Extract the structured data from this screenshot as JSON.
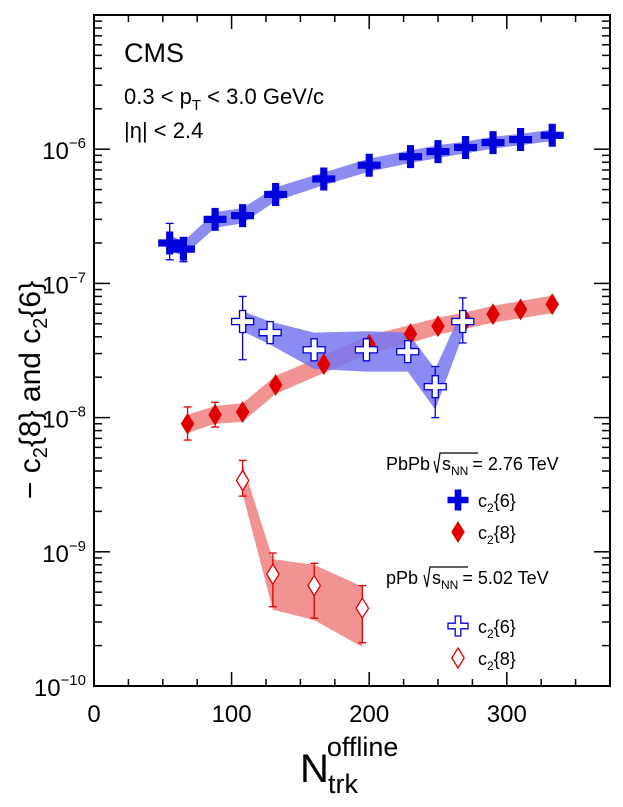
{
  "chart_data": {
    "type": "scatter",
    "title": "CMS",
    "annotations": {
      "pt_range": "0.3 < p",
      "pt_sub": "T",
      "pt_rest": " < 3.0 GeV/c",
      "eta": "|η| < 2.4"
    },
    "xlabel": {
      "main": "N",
      "sub": "trk",
      "sup": "offline"
    },
    "ylabel": "− c2{8} and c2{6}",
    "xlim": [
      0,
      375
    ],
    "ylim": [
      1e-10,
      1e-05
    ],
    "yscale": "log",
    "xticks": [
      "0",
      "100",
      "200",
      "300"
    ],
    "yticks": [
      {
        "base": "10",
        "exp": "−10",
        "value": 1e-10
      },
      {
        "base": "10",
        "exp": "−9",
        "value": 1e-09
      },
      {
        "base": "10",
        "exp": "−8",
        "value": 1e-08
      },
      {
        "base": "10",
        "exp": "−7",
        "value": 1e-07
      },
      {
        "base": "10",
        "exp": "−6",
        "value": 1e-06
      }
    ],
    "legend": {
      "position": "bottom-right",
      "groups": [
        {
          "system": "PbPb",
          "energy": "= 2.76 TeV",
          "entries": [
            {
              "label": "c2{6}",
              "series": 0
            },
            {
              "label": "c2{8}",
              "series": 1
            }
          ]
        },
        {
          "system": "pPb",
          "energy": "= 5.02 TeV",
          "entries": [
            {
              "label": "c2{6}",
              "series": 2
            },
            {
              "label": "c2{8}",
              "series": 3
            }
          ]
        }
      ],
      "sqrt_label": "s",
      "sqrt_sub": "NN"
    },
    "series": [
      {
        "name": "PbPb c2{6}",
        "marker": "cross",
        "filled": true,
        "color": "#0000dd",
        "band": "#7777ee",
        "x": [
          55,
          65,
          88,
          108,
          132,
          167,
          200,
          230,
          250,
          270,
          290,
          310,
          333
        ],
        "y": [
          2e-07,
          1.8e-07,
          3e-07,
          3.2e-07,
          4.6e-07,
          6e-07,
          7.6e-07,
          8.8e-07,
          9.6e-07,
          1.03e-06,
          1.12e-06,
          1.18e-06,
          1.27e-06
        ],
        "err": [
          [
            1.5e-07,
            2.8e-07
          ],
          [
            1.45e-07,
            2.2e-07
          ],
          null,
          null,
          null,
          null,
          null,
          null,
          null,
          null,
          null,
          null,
          null
        ],
        "band_lo": [
          1.75e-07,
          1.6e-07,
          2.6e-07,
          2.8e-07,
          4.1e-07,
          5.4e-07,
          6.8e-07,
          7.9e-07,
          8.6e-07,
          9.3e-07,
          1.01e-06,
          1.07e-06,
          1.15e-06
        ],
        "band_hi": [
          2.3e-07,
          2.05e-07,
          3.4e-07,
          3.65e-07,
          5.2e-07,
          6.7e-07,
          8.5e-07,
          9.8e-07,
          1.07e-06,
          1.14e-06,
          1.24e-06,
          1.3e-06,
          1.4e-06
        ]
      },
      {
        "name": "PbPb c2{8}",
        "marker": "diamond",
        "filled": true,
        "color": "#e00000",
        "band": "#f08080",
        "x": [
          68,
          88,
          108,
          132,
          167,
          200,
          230,
          250,
          270,
          290,
          310,
          333
        ],
        "y": [
          9e-09,
          1.05e-08,
          1.1e-08,
          1.75e-08,
          2.5e-08,
          3.5e-08,
          4.2e-08,
          4.8e-08,
          5.3e-08,
          5.9e-08,
          6.4e-08,
          7e-08
        ],
        "err": [
          [
            6.8e-09,
            1.2e-08
          ],
          [
            8.5e-09,
            1.3e-08
          ],
          null,
          null,
          null,
          null,
          null,
          null,
          null,
          null,
          null,
          null
        ],
        "band_lo": [
          7.7e-09,
          9e-09,
          9.3e-09,
          1.5e-08,
          2.15e-08,
          3e-08,
          3.6e-08,
          4.15e-08,
          4.6e-08,
          5.1e-08,
          5.5e-08,
          6e-08
        ],
        "band_hi": [
          1.05e-08,
          1.22e-08,
          1.28e-08,
          2.05e-08,
          2.9e-08,
          4.1e-08,
          4.9e-08,
          5.55e-08,
          6.1e-08,
          6.8e-08,
          7.4e-08,
          8.1e-08
        ]
      },
      {
        "name": "pPb c2{6}",
        "marker": "cross",
        "filled": false,
        "color": "#0000dd",
        "band": "#7777ee",
        "x": [
          108,
          128,
          160,
          198,
          228,
          248,
          268
        ],
        "y": [
          5.2e-08,
          4.3e-08,
          3.2e-08,
          3.2e-08,
          3.1e-08,
          1.7e-08,
          5.2e-08
        ],
        "err": [
          [
            2.7e-08,
            8e-08
          ],
          null,
          null,
          null,
          null,
          [
            1e-08,
            2.4e-08
          ],
          [
            3.6e-08,
            7.8e-08
          ]
        ],
        "band_lo": [
          4.4e-08,
          3.5e-08,
          2.3e-08,
          2.2e-08,
          2.2e-08,
          1.15e-08,
          4.1e-08
        ],
        "band_hi": [
          6.2e-08,
          5.2e-08,
          4.3e-08,
          4.4e-08,
          4.3e-08,
          2.3e-08,
          6.5e-08
        ]
      },
      {
        "name": "pPb c2{8}",
        "marker": "diamond",
        "filled": false,
        "color": "#e00000",
        "band": "#f08080",
        "x": [
          108,
          130,
          160,
          195
        ],
        "y": [
          3.4e-09,
          6.8e-10,
          5.6e-10,
          3.8e-10
        ],
        "err": [
          [
            2.6e-09,
            4.8e-09
          ],
          [
            3.9e-10,
            9.8e-10
          ],
          [
            3.2e-10,
            8.2e-10
          ],
          [
            2.1e-10,
            5.6e-10
          ]
        ],
        "band_lo": [
          2.7e-09,
          3.7e-10,
          3.1e-10,
          1.95e-10
        ],
        "band_hi": [
          4.5e-09,
          8.8e-10,
          8e-10,
          5.5e-10
        ]
      }
    ]
  }
}
